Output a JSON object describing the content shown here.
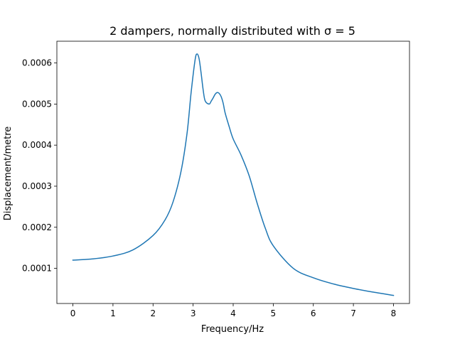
{
  "chart_data": {
    "type": "line",
    "title": "2 dampers, normally distributed with σ = 5",
    "xlabel": "Frequency/Hz",
    "ylabel": "Displacement/metre",
    "xlim": [
      -0.4,
      8.4
    ],
    "ylim": [
      1.44e-05,
      0.000653
    ],
    "xticks": [
      0,
      1,
      2,
      3,
      4,
      5,
      6,
      7,
      8
    ],
    "xtick_labels": [
      "0",
      "1",
      "2",
      "3",
      "4",
      "5",
      "6",
      "7",
      "8"
    ],
    "yticks": [
      0.0001,
      0.0002,
      0.0003,
      0.0004,
      0.0005,
      0.0006
    ],
    "ytick_labels": [
      "0.0001",
      "0.0002",
      "0.0003",
      "0.0004",
      "0.0005",
      "0.0006"
    ],
    "grid": false,
    "series": [
      {
        "color": "#1f77b4",
        "x": [
          0,
          0.5,
          1.0,
          1.5,
          2.0,
          2.3,
          2.5,
          2.7,
          2.85,
          2.95,
          3.05,
          3.1,
          3.15,
          3.2,
          3.25,
          3.3,
          3.4,
          3.45,
          3.5,
          3.55,
          3.6,
          3.65,
          3.7,
          3.75,
          3.8,
          3.9,
          4.0,
          4.2,
          4.4,
          4.6,
          4.8,
          5.0,
          5.5,
          6.0,
          6.5,
          7.0,
          7.5,
          8.0
        ],
        "y": [
          0.00012,
          0.000123,
          0.00013,
          0.000145,
          0.00018,
          0.000218,
          0.000262,
          0.000337,
          0.00043,
          0.000528,
          0.000608,
          0.000622,
          0.00061,
          0.000575,
          0.000535,
          0.000508,
          0.0005,
          0.000507,
          0.000515,
          0.000524,
          0.000528,
          0.000526,
          0.000518,
          0.000502,
          0.000478,
          0.000445,
          0.000415,
          0.000375,
          0.000325,
          0.000258,
          0.000198,
          0.000155,
          0.0001,
          7.7e-05,
          6.2e-05,
          5.1e-05,
          4.2e-05,
          3.4e-05
        ]
      }
    ]
  }
}
